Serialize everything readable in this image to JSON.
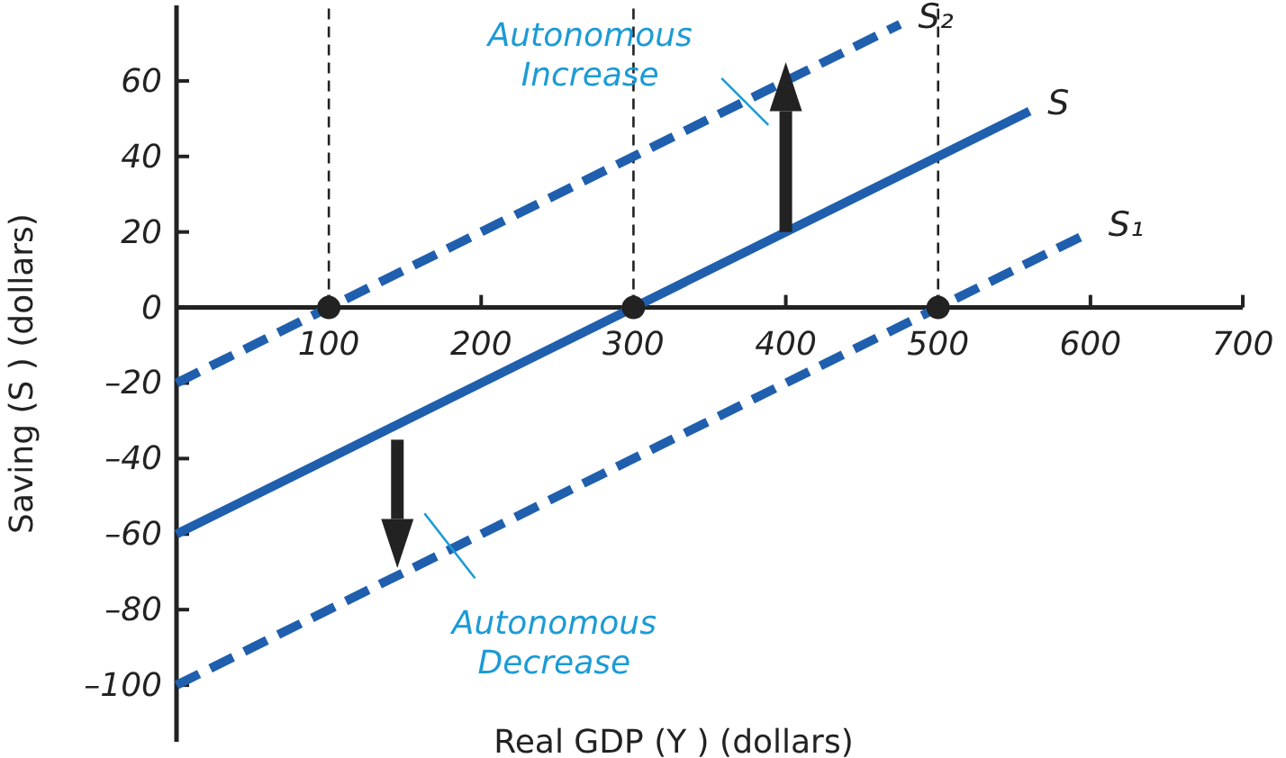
{
  "chart_data": {
    "type": "line",
    "xlabel": "Real GDP (Y ) (dollars)",
    "ylabel": "Saving (S ) (dollars)",
    "xlim": [
      0,
      700
    ],
    "ylim": [
      -115,
      80
    ],
    "xticks": [
      100,
      200,
      300,
      400,
      500,
      600,
      700
    ],
    "yticks": [
      {
        "value": -100,
        "label": "–100"
      },
      {
        "value": -80,
        "label": "–80"
      },
      {
        "value": -60,
        "label": "–60"
      },
      {
        "value": -40,
        "label": "–40"
      },
      {
        "value": -20,
        "label": "–20"
      },
      0,
      20,
      40,
      60
    ],
    "grid": false,
    "series": [
      {
        "name": "S₂",
        "color": "#1f5fad",
        "x": [
          0,
          475
        ],
        "values": [
          -20,
          75
        ],
        "line_style": "dashed"
      },
      {
        "name": "S",
        "color": "#1f5fad",
        "x": [
          0,
          560
        ],
        "values": [
          -60,
          52
        ],
        "line_style": "solid"
      },
      {
        "name": "S₁",
        "color": "#1f5fad",
        "x": [
          0,
          600
        ],
        "values": [
          -100,
          20
        ],
        "line_style": "dashed"
      },
      {
        "type": "scatter",
        "color": "#222222",
        "x": [
          100,
          300,
          500
        ],
        "values": [
          0,
          0,
          0
        ],
        "marker": "circle"
      }
    ],
    "ref_lines": [
      {
        "axis": "x",
        "value": 100,
        "color": "#222222",
        "line_style": "dashed"
      },
      {
        "axis": "x",
        "value": 300,
        "color": "#222222",
        "line_style": "dashed"
      },
      {
        "axis": "x",
        "value": 500,
        "color": "#222222",
        "line_style": "dashed"
      }
    ],
    "annotations": [
      {
        "text": "Autonomous Increase",
        "x": 372,
        "y": 55
      },
      {
        "text": "Autonomous Decrease",
        "x": 177,
        "y": -65
      }
    ]
  }
}
